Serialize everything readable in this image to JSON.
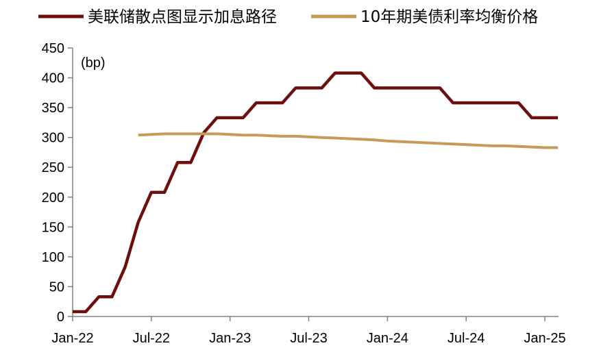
{
  "chart_data": {
    "type": "line",
    "title": "",
    "unit_label": "(bp)",
    "xlabel": "",
    "ylabel": "",
    "x_ticks": [
      "Jan-22",
      "Jul-22",
      "Jan-23",
      "Jul-23",
      "Jan-24",
      "Jul-24",
      "Jan-25"
    ],
    "y_ticks": [
      0,
      50,
      100,
      150,
      200,
      250,
      300,
      350,
      400,
      450
    ],
    "xlim": [
      "2022-01",
      "2025-02"
    ],
    "ylim": [
      0,
      450
    ],
    "grid": false,
    "legend_position": "top",
    "series": [
      {
        "name": "美联储散点图显示加息路径",
        "color": "#6e0f0f",
        "points": [
          [
            "2022-01",
            8
          ],
          [
            "2022-02",
            8
          ],
          [
            "2022-03",
            33
          ],
          [
            "2022-04",
            33
          ],
          [
            "2022-05",
            83
          ],
          [
            "2022-06",
            158
          ],
          [
            "2022-07",
            208
          ],
          [
            "2022-08",
            208
          ],
          [
            "2022-09",
            258
          ],
          [
            "2022-10",
            258
          ],
          [
            "2022-11",
            308
          ],
          [
            "2022-12",
            333
          ],
          [
            "2023-01",
            333
          ],
          [
            "2023-02",
            333
          ],
          [
            "2023-03",
            358
          ],
          [
            "2023-04",
            358
          ],
          [
            "2023-05",
            358
          ],
          [
            "2023-06",
            383
          ],
          [
            "2023-07",
            383
          ],
          [
            "2023-08",
            383
          ],
          [
            "2023-09",
            408
          ],
          [
            "2023-10",
            408
          ],
          [
            "2023-11",
            408
          ],
          [
            "2023-12",
            383
          ],
          [
            "2024-01",
            383
          ],
          [
            "2024-02",
            383
          ],
          [
            "2024-03",
            383
          ],
          [
            "2024-04",
            383
          ],
          [
            "2024-05",
            383
          ],
          [
            "2024-06",
            358
          ],
          [
            "2024-07",
            358
          ],
          [
            "2024-08",
            358
          ],
          [
            "2024-09",
            358
          ],
          [
            "2024-10",
            358
          ],
          [
            "2024-11",
            358
          ],
          [
            "2024-12",
            333
          ],
          [
            "2025-01",
            333
          ],
          [
            "2025-02",
            333
          ]
        ]
      },
      {
        "name": "10年期美债利率均衡价格",
        "color": "#c89a58",
        "points": [
          [
            "2022-06",
            304
          ],
          [
            "2022-07",
            305
          ],
          [
            "2022-08",
            306
          ],
          [
            "2022-09",
            306
          ],
          [
            "2022-10",
            306
          ],
          [
            "2022-11",
            306
          ],
          [
            "2022-12",
            306
          ],
          [
            "2023-01",
            305
          ],
          [
            "2023-02",
            304
          ],
          [
            "2023-03",
            304
          ],
          [
            "2023-04",
            303
          ],
          [
            "2023-05",
            302
          ],
          [
            "2023-06",
            302
          ],
          [
            "2023-07",
            301
          ],
          [
            "2023-08",
            300
          ],
          [
            "2023-09",
            299
          ],
          [
            "2023-10",
            298
          ],
          [
            "2023-11",
            297
          ],
          [
            "2023-12",
            296
          ],
          [
            "2024-01",
            294
          ],
          [
            "2024-02",
            293
          ],
          [
            "2024-03",
            292
          ],
          [
            "2024-04",
            291
          ],
          [
            "2024-05",
            290
          ],
          [
            "2024-06",
            289
          ],
          [
            "2024-07",
            288
          ],
          [
            "2024-08",
            287
          ],
          [
            "2024-09",
            286
          ],
          [
            "2024-10",
            286
          ],
          [
            "2024-11",
            285
          ],
          [
            "2024-12",
            284
          ],
          [
            "2025-01",
            283
          ],
          [
            "2025-02",
            283
          ]
        ]
      }
    ]
  }
}
